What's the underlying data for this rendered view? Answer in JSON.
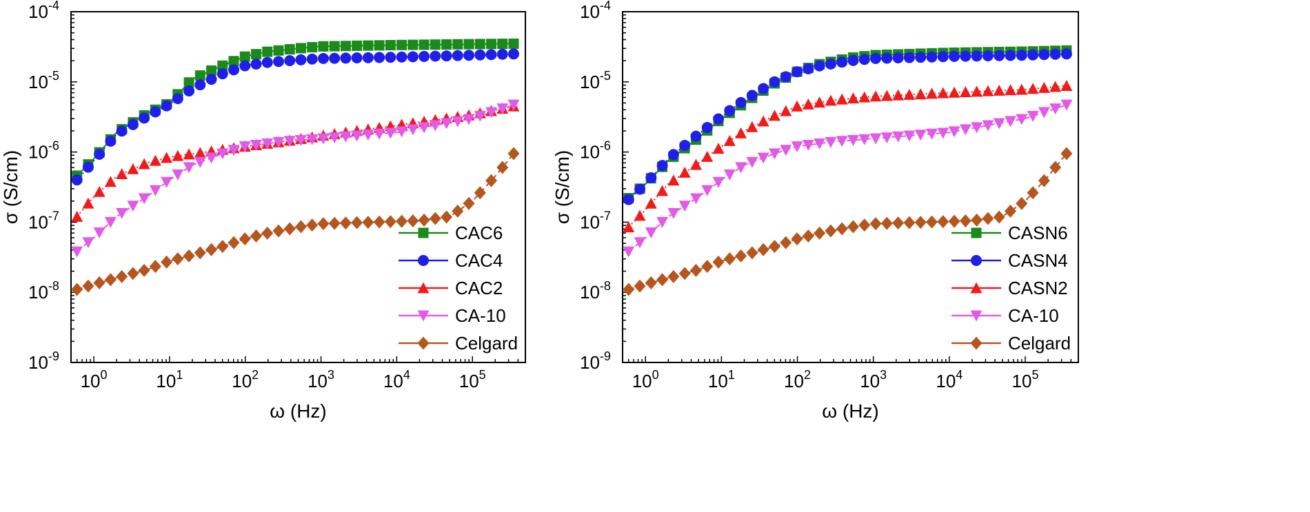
{
  "colors": {
    "CAC6": "#1a8a1a",
    "CAC4": "#1f1fe8",
    "CAC2": "#f01c1c",
    "CA-10": "#e15ae8",
    "Celgard": "#b5561e",
    "CASN6": "#1a8a1a",
    "CASN4": "#1f1fe8",
    "CASN2": "#f01c1c"
  },
  "chart_data": [
    {
      "type": "line",
      "panel": "left",
      "xlabel": "ω (Hz)",
      "ylabel": "σ (S/cm)",
      "xscale": "log",
      "yscale": "log",
      "xlim": [
        0.5,
        500000
      ],
      "ylim": [
        1e-09,
        0.0001
      ],
      "xtick_exponents": [
        "0",
        "1",
        "2",
        "3",
        "4",
        "5"
      ],
      "ytick_exponents": [
        "-9",
        "-8",
        "-7",
        "-6",
        "-5",
        "-4"
      ],
      "tick_base": "10",
      "legend_position": "bottom-right",
      "series": [
        {
          "name": "CAC6",
          "marker": "square",
          "line": "solid",
          "points": [
            [
              0.6,
              4.6e-07
            ],
            [
              1,
              8e-07
            ],
            [
              2,
              1.9e-06
            ],
            [
              5,
              3.5e-06
            ],
            [
              10,
              5e-06
            ],
            [
              20,
              1.1e-05
            ],
            [
              50,
              1.7e-05
            ],
            [
              100,
              2.3e-05
            ],
            [
              200,
              2.7e-05
            ],
            [
              500,
              3e-05
            ],
            [
              1000,
              3.2e-05
            ],
            [
              10000,
              3.35e-05
            ],
            [
              100000,
              3.45e-05
            ],
            [
              350000,
              3.5e-05
            ]
          ]
        },
        {
          "name": "CAC4",
          "marker": "circle",
          "line": "dotted",
          "points": [
            [
              0.6,
              4e-07
            ],
            [
              1,
              7.5e-07
            ],
            [
              2,
              1.8e-06
            ],
            [
              5,
              3.2e-06
            ],
            [
              10,
              4.8e-06
            ],
            [
              20,
              8e-06
            ],
            [
              50,
              1.3e-05
            ],
            [
              100,
              1.7e-05
            ],
            [
              200,
              1.9e-05
            ],
            [
              500,
              2.05e-05
            ],
            [
              1000,
              2.15e-05
            ],
            [
              10000,
              2.25e-05
            ],
            [
              100000,
              2.4e-05
            ],
            [
              350000,
              2.5e-05
            ]
          ]
        },
        {
          "name": "CAC2",
          "marker": "triangle-up",
          "line": "dotted",
          "points": [
            [
              0.6,
              1.2e-07
            ],
            [
              1,
              2.3e-07
            ],
            [
              2,
              4.5e-07
            ],
            [
              5,
              7e-07
            ],
            [
              10,
              8.5e-07
            ],
            [
              30,
              1e-06
            ],
            [
              100,
              1.2e-06
            ],
            [
              300,
              1.4e-06
            ],
            [
              1000,
              1.7e-06
            ],
            [
              10000,
              2.4e-06
            ],
            [
              100000,
              3.4e-06
            ],
            [
              350000,
              4.5e-06
            ]
          ]
        },
        {
          "name": "CA-10",
          "marker": "triangle-down",
          "line": "dashed",
          "points": [
            [
              0.6,
              3.8e-08
            ],
            [
              1,
              6e-08
            ],
            [
              2,
              1.2e-07
            ],
            [
              5,
              2.3e-07
            ],
            [
              10,
              4e-07
            ],
            [
              20,
              6.5e-07
            ],
            [
              50,
              9.5e-07
            ],
            [
              100,
              1.2e-06
            ],
            [
              300,
              1.4e-06
            ],
            [
              1000,
              1.55e-06
            ],
            [
              10000,
              1.9e-06
            ],
            [
              100000,
              3e-06
            ],
            [
              350000,
              4.7e-06
            ]
          ]
        },
        {
          "name": "Celgard",
          "marker": "diamond",
          "line": "dashed",
          "points": [
            [
              0.6,
              1.1e-08
            ],
            [
              1,
              1.3e-08
            ],
            [
              2,
              1.6e-08
            ],
            [
              5,
              2.1e-08
            ],
            [
              10,
              2.8e-08
            ],
            [
              20,
              3.4e-08
            ],
            [
              50,
              4.5e-08
            ],
            [
              100,
              5.8e-08
            ],
            [
              200,
              7e-08
            ],
            [
              500,
              8.5e-08
            ],
            [
              1000,
              9.5e-08
            ],
            [
              5000,
              1e-07
            ],
            [
              20000,
              1.05e-07
            ],
            [
              50000,
              1.2e-07
            ],
            [
              100000,
              2e-07
            ],
            [
              200000,
              4.5e-07
            ],
            [
              350000,
              9.5e-07
            ]
          ]
        }
      ]
    },
    {
      "type": "line",
      "panel": "right",
      "xlabel": "ω (Hz)",
      "ylabel": "σ (S/cm)",
      "xscale": "log",
      "yscale": "log",
      "xlim": [
        0.5,
        500000
      ],
      "ylim": [
        1e-09,
        0.0001
      ],
      "xtick_exponents": [
        "0",
        "1",
        "2",
        "3",
        "4",
        "5"
      ],
      "ytick_exponents": [
        "-9",
        "-8",
        "-7",
        "-6",
        "-5",
        "-4"
      ],
      "tick_base": "10",
      "legend_position": "bottom-right",
      "series": [
        {
          "name": "CASN6",
          "marker": "square",
          "line": "solid",
          "points": [
            [
              0.6,
              2.2e-07
            ],
            [
              1,
              3.5e-07
            ],
            [
              2,
              7.5e-07
            ],
            [
              5,
              1.6e-06
            ],
            [
              10,
              3e-06
            ],
            [
              20,
              5e-06
            ],
            [
              50,
              9.5e-06
            ],
            [
              100,
              1.4e-05
            ],
            [
              200,
              1.8e-05
            ],
            [
              500,
              2.2e-05
            ],
            [
              1000,
              2.4e-05
            ],
            [
              10000,
              2.6e-05
            ],
            [
              100000,
              2.7e-05
            ],
            [
              350000,
              2.8e-05
            ]
          ]
        },
        {
          "name": "CASN4",
          "marker": "circle",
          "line": "dotted",
          "points": [
            [
              0.6,
              2.1e-07
            ],
            [
              1,
              3.5e-07
            ],
            [
              2,
              8e-07
            ],
            [
              5,
              1.8e-06
            ],
            [
              10,
              3.2e-06
            ],
            [
              20,
              5.5e-06
            ],
            [
              50,
              1e-05
            ],
            [
              100,
              1.4e-05
            ],
            [
              200,
              1.7e-05
            ],
            [
              500,
              2e-05
            ],
            [
              1000,
              2.15e-05
            ],
            [
              10000,
              2.3e-05
            ],
            [
              100000,
              2.4e-05
            ],
            [
              350000,
              2.5e-05
            ]
          ]
        },
        {
          "name": "CASN2",
          "marker": "triangle-up",
          "line": "dotted",
          "points": [
            [
              0.6,
              8.5e-08
            ],
            [
              1,
              1.5e-07
            ],
            [
              2,
              3.5e-07
            ],
            [
              5,
              7e-07
            ],
            [
              10,
              1.2e-06
            ],
            [
              20,
              2e-06
            ],
            [
              50,
              3.3e-06
            ],
            [
              100,
              4.5e-06
            ],
            [
              300,
              5.5e-06
            ],
            [
              1000,
              6.2e-06
            ],
            [
              10000,
              7e-06
            ],
            [
              100000,
              7.8e-06
            ],
            [
              350000,
              8.8e-06
            ]
          ]
        },
        {
          "name": "CA-10",
          "marker": "triangle-down",
          "line": "dashed",
          "points": [
            [
              0.6,
              3.8e-08
            ],
            [
              1,
              6e-08
            ],
            [
              2,
              1.2e-07
            ],
            [
              5,
              2.3e-07
            ],
            [
              10,
              4e-07
            ],
            [
              20,
              6.5e-07
            ],
            [
              50,
              9.5e-07
            ],
            [
              100,
              1.2e-06
            ],
            [
              300,
              1.4e-06
            ],
            [
              1000,
              1.55e-06
            ],
            [
              10000,
              1.9e-06
            ],
            [
              100000,
              3e-06
            ],
            [
              350000,
              4.7e-06
            ]
          ]
        },
        {
          "name": "Celgard",
          "marker": "diamond",
          "line": "dashed",
          "points": [
            [
              0.6,
              1.1e-08
            ],
            [
              1,
              1.3e-08
            ],
            [
              2,
              1.6e-08
            ],
            [
              5,
              2.1e-08
            ],
            [
              10,
              2.8e-08
            ],
            [
              20,
              3.4e-08
            ],
            [
              50,
              4.5e-08
            ],
            [
              100,
              5.8e-08
            ],
            [
              200,
              7e-08
            ],
            [
              500,
              8.5e-08
            ],
            [
              1000,
              9.5e-08
            ],
            [
              5000,
              1e-07
            ],
            [
              20000,
              1.05e-07
            ],
            [
              50000,
              1.2e-07
            ],
            [
              100000,
              2e-07
            ],
            [
              200000,
              4.5e-07
            ],
            [
              350000,
              9.5e-07
            ]
          ]
        }
      ]
    }
  ]
}
